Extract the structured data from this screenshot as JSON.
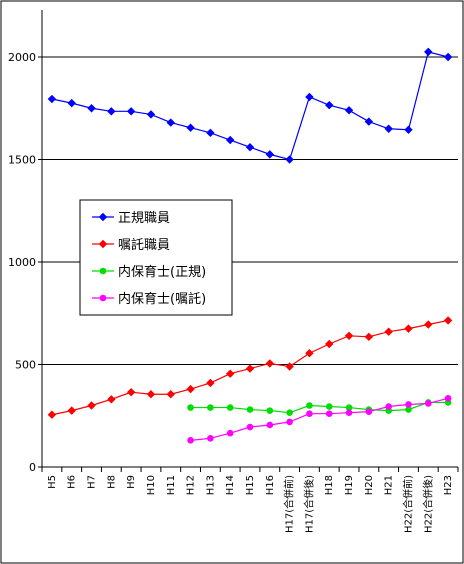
{
  "chart_data": {
    "type": "line",
    "categories": [
      "H5",
      "H6",
      "H7",
      "H8",
      "H9",
      "H10",
      "H11",
      "H12",
      "H13",
      "H14",
      "H15",
      "H16",
      "H17(合併前)",
      "H17(合併後)",
      "H18",
      "H19",
      "H20",
      "H21",
      "H22(合併前)",
      "H22(合併後)",
      "H23"
    ],
    "ylim": [
      0,
      2200
    ],
    "yticks": [
      0,
      500,
      1000,
      1500,
      2000
    ],
    "grid": "horizontal",
    "legend": "left-middle",
    "series": [
      {
        "name": "正規職員",
        "color": "#0000ff",
        "marker": "diamond",
        "values": [
          1795,
          1775,
          1750,
          1735,
          1735,
          1720,
          1680,
          1655,
          1630,
          1595,
          1560,
          1525,
          1500,
          1805,
          1765,
          1740,
          1685,
          1650,
          1645,
          2025,
          2000
        ]
      },
      {
        "name": "嘱託職員",
        "color": "#ff0000",
        "marker": "diamond",
        "values": [
          255,
          275,
          300,
          330,
          365,
          355,
          355,
          380,
          410,
          455,
          480,
          505,
          490,
          555,
          600,
          640,
          635,
          660,
          675,
          695,
          715
        ]
      },
      {
        "name": "内保育士(正規)",
        "color": "#00dd00",
        "marker": "circle",
        "values": [
          null,
          null,
          null,
          null,
          null,
          null,
          null,
          290,
          290,
          290,
          280,
          275,
          265,
          300,
          295,
          290,
          280,
          275,
          280,
          315,
          315
        ]
      },
      {
        "name": "内保育士(嘱託)",
        "color": "#ff00ff",
        "marker": "circle",
        "values": [
          null,
          null,
          null,
          null,
          null,
          null,
          null,
          130,
          140,
          165,
          195,
          205,
          220,
          260,
          260,
          265,
          270,
          295,
          305,
          310,
          335
        ]
      }
    ]
  }
}
